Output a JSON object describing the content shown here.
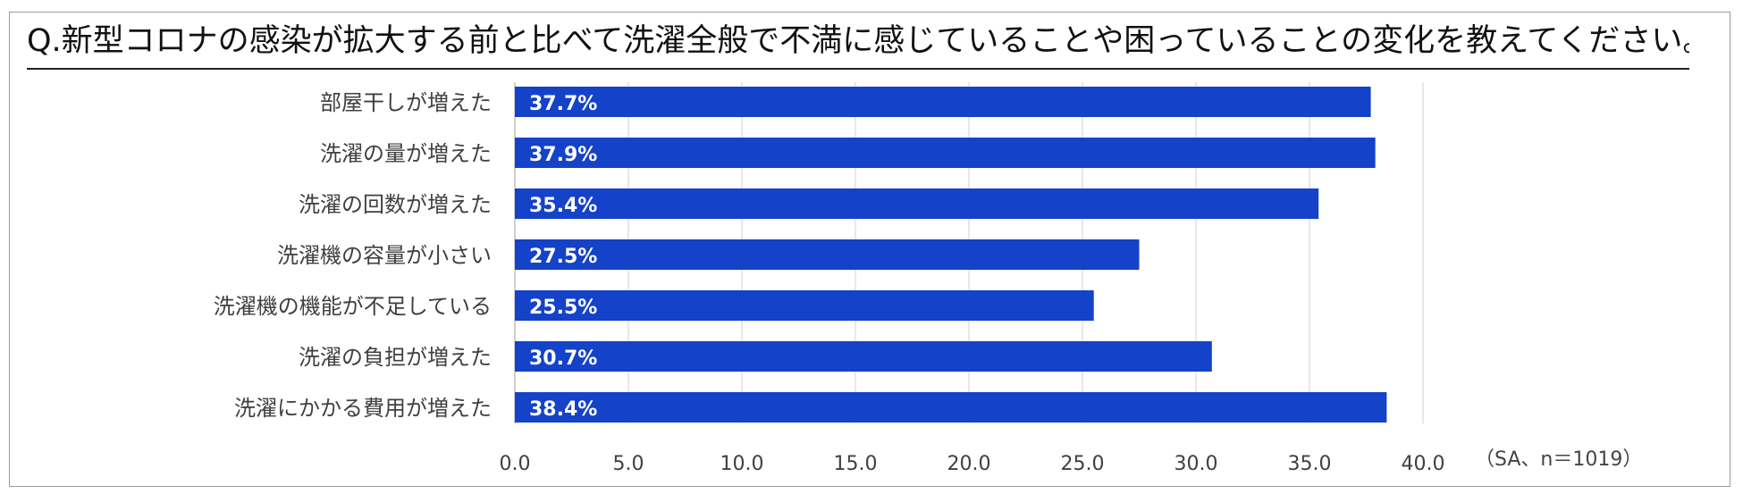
{
  "title": "Q.新型コロナの感染が拡大する前と比べて洗濯全般で不満に感じていることや困っていることの変化を教えてください。",
  "note": "（SA、n＝1019）",
  "colors": {
    "bar": "#1442C8",
    "grid": "#d9d9d9",
    "axis": "#bfbfbf",
    "label": "#404040",
    "value_label": "#ffffff"
  },
  "chart_data": {
    "type": "bar",
    "orientation": "horizontal",
    "categories": [
      "部屋干しが増えた",
      "洗濯の量が増えた",
      "洗濯の回数が増えた",
      "洗濯機の容量が小さい",
      "洗濯機の機能が不足している",
      "洗濯の負担が増えた",
      "洗濯にかかる費用が増えた"
    ],
    "values": [
      37.7,
      37.9,
      35.4,
      27.5,
      25.5,
      30.7,
      38.4
    ],
    "value_labels": [
      "37.7%",
      "37.9%",
      "35.4%",
      "27.5%",
      "25.5%",
      "30.7%",
      "38.4%"
    ],
    "xticks": [
      "0.0",
      "5.0",
      "10.0",
      "15.0",
      "20.0",
      "25.0",
      "30.0",
      "35.0",
      "40.0"
    ],
    "xlim": [
      0,
      40
    ],
    "grid": true,
    "legend": "none"
  }
}
